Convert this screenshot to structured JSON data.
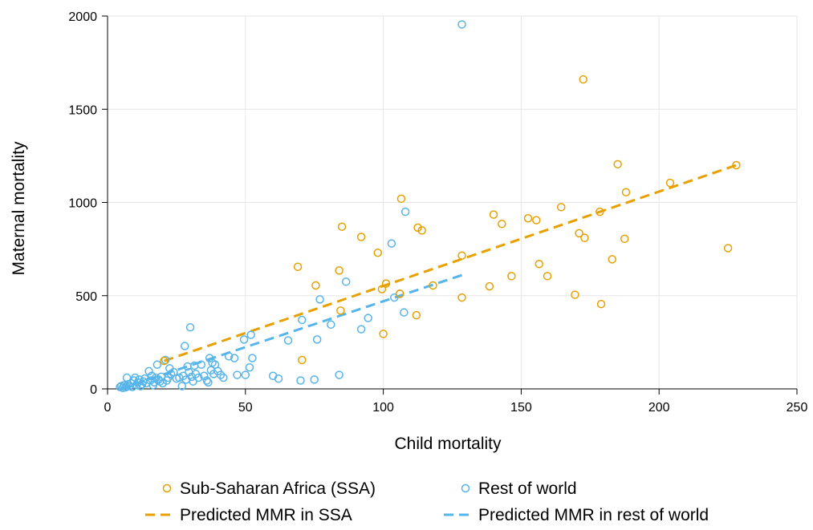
{
  "chart_data": {
    "type": "scatter",
    "title": "",
    "xlabel": "Child mortality",
    "ylabel": "Maternal mortality",
    "xlim": [
      0,
      250
    ],
    "ylim": [
      0,
      2000
    ],
    "xticks": [
      "0",
      "50",
      "100",
      "150",
      "200",
      "250"
    ],
    "yticks": [
      "0",
      "500",
      "1000",
      "1500",
      "2000"
    ],
    "grid": "vertical and horizontal, light gray",
    "legend_position": "bottom",
    "series": [
      {
        "name": "Sub-Saharan Africa (SSA)",
        "kind": "scatter",
        "color": "#e6a000",
        "points": [
          [
            20.5,
            150
          ],
          [
            69,
            655
          ],
          [
            70.5,
            155
          ],
          [
            75.5,
            555
          ],
          [
            84,
            635
          ],
          [
            84.5,
            420
          ],
          [
            85,
            870
          ],
          [
            92,
            815
          ],
          [
            98,
            730
          ],
          [
            99.5,
            535
          ],
          [
            100,
            295
          ],
          [
            101,
            565
          ],
          [
            106,
            510
          ],
          [
            106.5,
            1020
          ],
          [
            112,
            395
          ],
          [
            112.5,
            865
          ],
          [
            114,
            850
          ],
          [
            118,
            555
          ],
          [
            128.5,
            715
          ],
          [
            128.5,
            490
          ],
          [
            138.5,
            550
          ],
          [
            140,
            935
          ],
          [
            143,
            885
          ],
          [
            146.5,
            605
          ],
          [
            152.5,
            915
          ],
          [
            155.5,
            905
          ],
          [
            156.5,
            670
          ],
          [
            159.5,
            605
          ],
          [
            164.5,
            975
          ],
          [
            169.5,
            505
          ],
          [
            171,
            835
          ],
          [
            172.5,
            1660
          ],
          [
            173,
            810
          ],
          [
            178.5,
            950
          ],
          [
            179,
            455
          ],
          [
            183,
            695
          ],
          [
            185,
            1205
          ],
          [
            187.5,
            805
          ],
          [
            188,
            1055
          ],
          [
            204,
            1105
          ],
          [
            225,
            755
          ],
          [
            228,
            1200
          ]
        ]
      },
      {
        "name": "Rest of world",
        "kind": "scatter",
        "color": "#56b4e9",
        "points": [
          [
            4.5,
            10
          ],
          [
            5,
            15
          ],
          [
            5.5,
            5
          ],
          [
            6,
            20
          ],
          [
            6.5,
            8
          ],
          [
            7,
            60
          ],
          [
            7,
            12
          ],
          [
            7.5,
            25
          ],
          [
            8,
            15
          ],
          [
            8.5,
            30
          ],
          [
            9,
            10
          ],
          [
            9.5,
            45
          ],
          [
            10,
            60
          ],
          [
            10.5,
            20
          ],
          [
            11,
            35
          ],
          [
            11.5,
            50
          ],
          [
            12,
            15
          ],
          [
            12.5,
            25
          ],
          [
            13,
            40
          ],
          [
            13.5,
            55
          ],
          [
            14,
            30
          ],
          [
            15,
            95
          ],
          [
            15.5,
            45
          ],
          [
            16,
            70
          ],
          [
            16.5,
            20
          ],
          [
            17,
            35
          ],
          [
            17.5,
            60
          ],
          [
            18,
            130
          ],
          [
            18.5,
            50
          ],
          [
            19,
            40
          ],
          [
            19.5,
            65
          ],
          [
            20,
            30
          ],
          [
            21,
            155
          ],
          [
            21.5,
            45
          ],
          [
            22,
            60
          ],
          [
            22.5,
            110
          ],
          [
            23,
            80
          ],
          [
            24,
            90
          ],
          [
            25,
            55
          ],
          [
            26,
            60
          ],
          [
            27,
            15
          ],
          [
            27.5,
            70
          ],
          [
            28,
            230
          ],
          [
            28.5,
            50
          ],
          [
            29,
            120
          ],
          [
            29.5,
            90
          ],
          [
            30,
            330
          ],
          [
            30.5,
            65
          ],
          [
            31,
            40
          ],
          [
            31.5,
            125
          ],
          [
            32,
            80
          ],
          [
            33,
            60
          ],
          [
            34,
            130
          ],
          [
            35,
            70
          ],
          [
            36,
            45
          ],
          [
            36.5,
            35
          ],
          [
            37,
            165
          ],
          [
            37.5,
            100
          ],
          [
            38,
            140
          ],
          [
            38.5,
            80
          ],
          [
            39,
            130
          ],
          [
            40,
            95
          ],
          [
            41,
            75
          ],
          [
            42,
            60
          ],
          [
            44,
            175
          ],
          [
            46,
            165
          ],
          [
            47,
            75
          ],
          [
            49.5,
            265
          ],
          [
            50,
            75
          ],
          [
            51.5,
            115
          ],
          [
            52,
            290
          ],
          [
            52.5,
            165
          ],
          [
            60,
            70
          ],
          [
            62,
            55
          ],
          [
            65.5,
            260
          ],
          [
            70,
            45
          ],
          [
            70.5,
            370
          ],
          [
            75,
            50
          ],
          [
            76,
            265
          ],
          [
            77,
            480
          ],
          [
            81,
            345
          ],
          [
            84,
            75
          ],
          [
            86.5,
            575
          ],
          [
            92,
            320
          ],
          [
            94.5,
            380
          ],
          [
            103,
            780
          ],
          [
            104,
            490
          ],
          [
            106,
            510
          ],
          [
            107.5,
            410
          ],
          [
            108,
            950
          ],
          [
            128.5,
            1955
          ]
        ]
      },
      {
        "name": "Predicted MMR in SSA",
        "kind": "line",
        "color": "#e6a000",
        "points": [
          [
            20.5,
            150
          ],
          [
            228,
            1200
          ]
        ]
      },
      {
        "name": "Predicted MMR in rest of world",
        "kind": "line",
        "color": "#56b4e9",
        "points": [
          [
            4.5,
            0
          ],
          [
            128.5,
            610
          ]
        ]
      }
    ]
  }
}
